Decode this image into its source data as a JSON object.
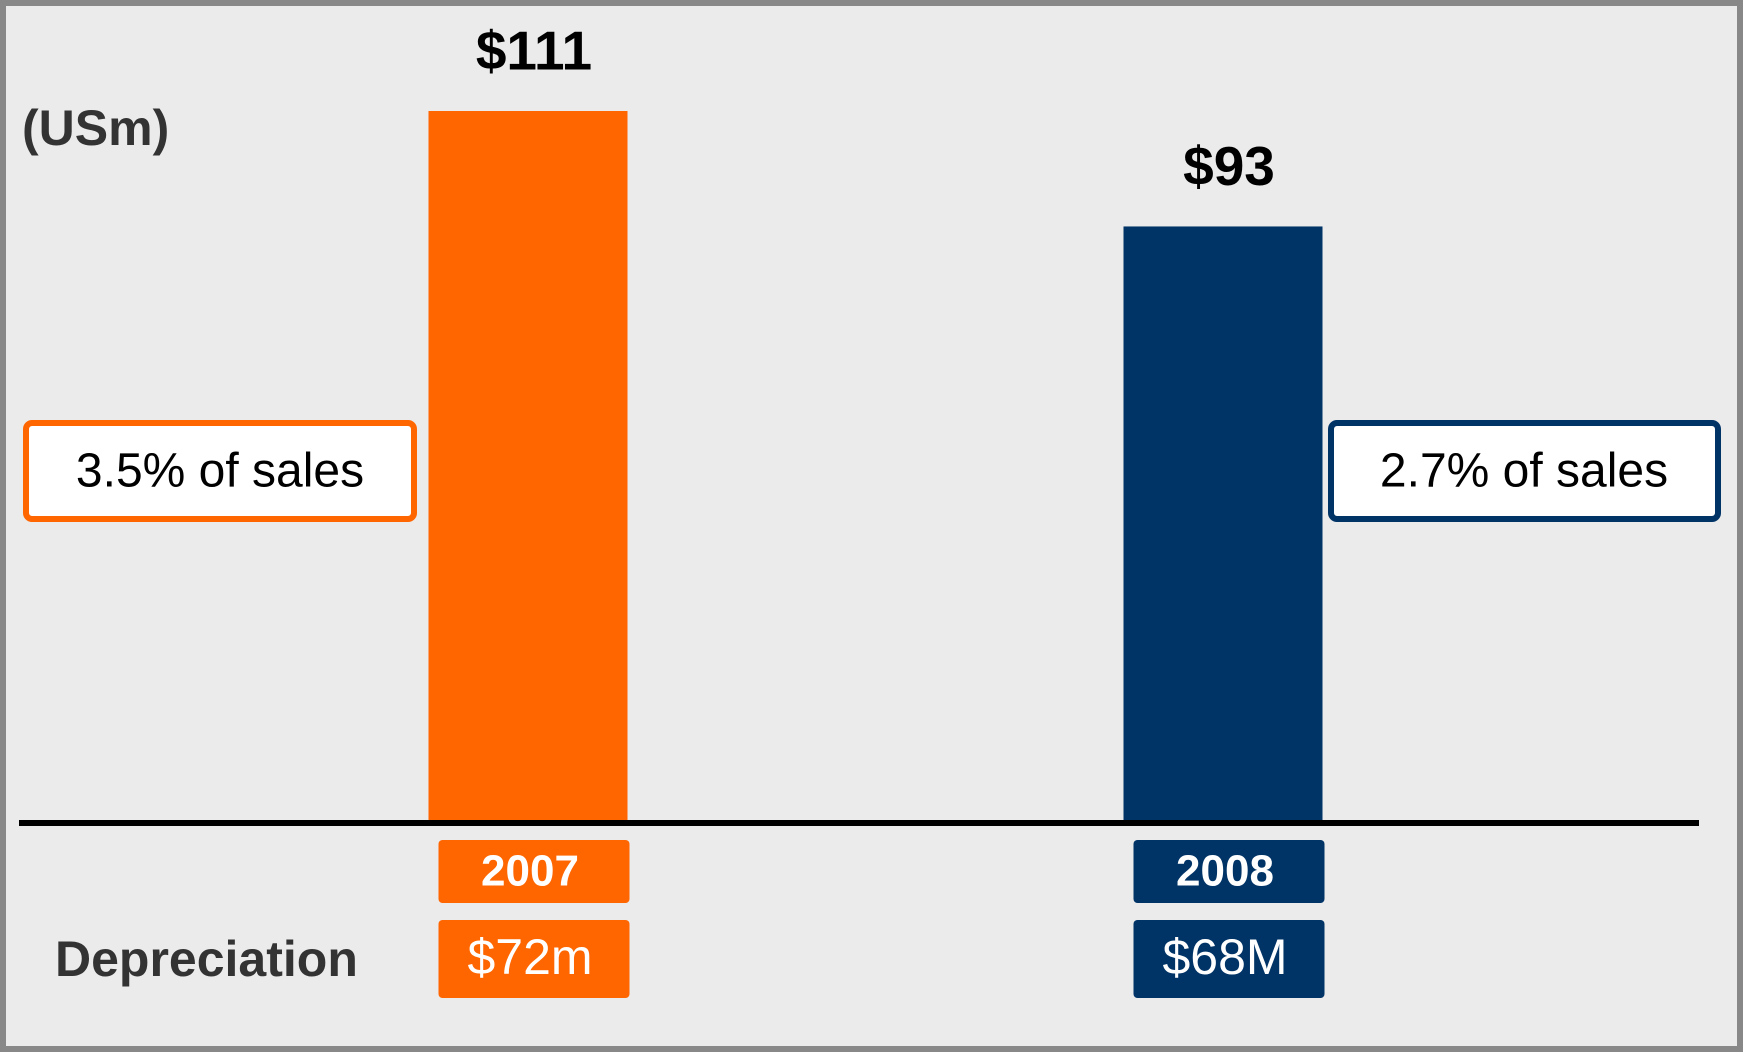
{
  "chart_data": {
    "type": "bar",
    "unit_label": "(USm)",
    "categories": [
      "2007",
      "2008"
    ],
    "values": [
      111,
      93
    ],
    "value_labels": [
      "$111",
      "$93"
    ],
    "colors": [
      "#ff6600",
      "#003366"
    ],
    "ylim": [
      0,
      111
    ],
    "annotations": [
      "3.5% of sales",
      "2.7% of sales"
    ],
    "depreciation": {
      "label": "Depreciation",
      "labels": [
        "$72m",
        "$68M"
      ]
    }
  }
}
